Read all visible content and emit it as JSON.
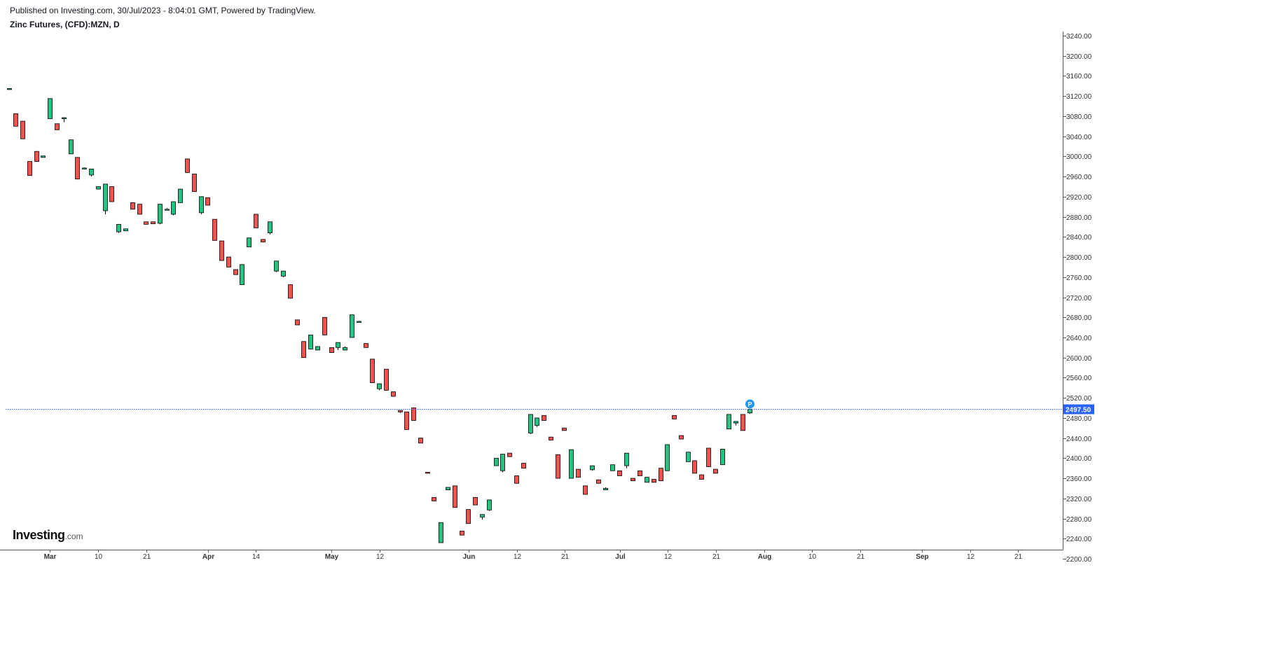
{
  "header": {
    "published": "Published on Investing.com, 30/Jul/2023 - 8:04:01 GMT, Powered by TradingView.",
    "symbol": "Zinc Futures, (CFD):MZN, D"
  },
  "logo": {
    "main": "Investing",
    "suffix": ".com"
  },
  "colors": {
    "up": "#26c281",
    "down": "#ef5350",
    "price_line": "#2962ff",
    "axis": "#555555",
    "marker": "#2196f3"
  },
  "chart_data": {
    "type": "candlestick",
    "title": "Zinc Futures, (CFD):MZN, D",
    "ylim": [
      2195,
      3245
    ],
    "y_ticks": [
      2200,
      2240,
      2280,
      2320,
      2360,
      2400,
      2440,
      2480,
      2520,
      2560,
      2600,
      2640,
      2680,
      2720,
      2760,
      2800,
      2840,
      2880,
      2920,
      2960,
      3000,
      3040,
      3080,
      3120,
      3160,
      3200,
      3240
    ],
    "x_ticks": [
      {
        "label": "Mar",
        "major": true,
        "x_day": 6
      },
      {
        "label": "10",
        "major": false,
        "x_day": 13
      },
      {
        "label": "21",
        "major": false,
        "x_day": 20
      },
      {
        "label": "Apr",
        "major": true,
        "x_day": 29
      },
      {
        "label": "14",
        "major": false,
        "x_day": 36
      },
      {
        "label": "May",
        "major": true,
        "x_day": 47
      },
      {
        "label": "12",
        "major": false,
        "x_day": 54
      },
      {
        "label": "Jun",
        "major": true,
        "x_day": 67
      },
      {
        "label": "12",
        "major": false,
        "x_day": 74
      },
      {
        "label": "21",
        "major": false,
        "x_day": 81
      },
      {
        "label": "Jul",
        "major": true,
        "x_day": 89
      },
      {
        "label": "12",
        "major": false,
        "x_day": 96
      },
      {
        "label": "21",
        "major": false,
        "x_day": 103
      },
      {
        "label": "Aug",
        "major": true,
        "x_day": 110
      },
      {
        "label": "10",
        "major": false,
        "x_day": 117
      },
      {
        "label": "21",
        "major": false,
        "x_day": 124
      },
      {
        "label": "Sep",
        "major": true,
        "x_day": 133
      },
      {
        "label": "12",
        "major": false,
        "x_day": 140
      },
      {
        "label": "21",
        "major": false,
        "x_day": 147
      }
    ],
    "last_price": 2497.5,
    "last_price_label": "2497.50",
    "marker_label": "P",
    "candles": [
      {
        "o": 3135,
        "h": 3135,
        "l": 3135,
        "c": 3135
      },
      {
        "o": 3085,
        "h": 3085,
        "l": 3060,
        "c": 3060
      },
      {
        "o": 3070,
        "h": 3070,
        "l": 3035,
        "c": 3035
      },
      {
        "o": 2990,
        "h": 2990,
        "l": 2962,
        "c": 2962
      },
      {
        "o": 3010,
        "h": 3010,
        "l": 2990,
        "c": 2990
      },
      {
        "o": 2998,
        "h": 3001,
        "l": 2998,
        "c": 3001
      },
      {
        "o": 3075,
        "h": 3115,
        "l": 3075,
        "c": 3115
      },
      {
        "o": 3065,
        "h": 3065,
        "l": 3053,
        "c": 3053
      },
      {
        "o": 3075,
        "h": 3078,
        "l": 3068,
        "c": 3077
      },
      {
        "o": 3005,
        "h": 3033,
        "l": 3005,
        "c": 3033
      },
      {
        "o": 2998,
        "h": 2998,
        "l": 2955,
        "c": 2955
      },
      {
        "o": 2975,
        "h": 2978,
        "l": 2975,
        "c": 2977
      },
      {
        "o": 2963,
        "h": 2975,
        "l": 2960,
        "c": 2975
      },
      {
        "o": 2935,
        "h": 2940,
        "l": 2935,
        "c": 2940
      },
      {
        "o": 2892,
        "h": 2945,
        "l": 2885,
        "c": 2945
      },
      {
        "o": 2940,
        "h": 2940,
        "l": 2910,
        "c": 2910
      },
      {
        "o": 2850,
        "h": 2865,
        "l": 2848,
        "c": 2865
      },
      {
        "o": 2852,
        "h": 2856,
        "l": 2852,
        "c": 2856
      },
      {
        "o": 2908,
        "h": 2908,
        "l": 2895,
        "c": 2895
      },
      {
        "o": 2905,
        "h": 2905,
        "l": 2885,
        "c": 2885
      },
      {
        "o": 2870,
        "h": 2870,
        "l": 2865,
        "c": 2865
      },
      {
        "o": 2870,
        "h": 2870,
        "l": 2866,
        "c": 2866
      },
      {
        "o": 2867,
        "h": 2905,
        "l": 2865,
        "c": 2905
      },
      {
        "o": 2893,
        "h": 2897,
        "l": 2893,
        "c": 2895
      },
      {
        "o": 2885,
        "h": 2910,
        "l": 2883,
        "c": 2910
      },
      {
        "o": 2908,
        "h": 2935,
        "l": 2908,
        "c": 2935
      },
      {
        "o": 2995,
        "h": 2995,
        "l": 2968,
        "c": 2968
      },
      {
        "o": 2965,
        "h": 2965,
        "l": 2930,
        "c": 2930
      },
      {
        "o": 2888,
        "h": 2920,
        "l": 2885,
        "c": 2920
      },
      {
        "o": 2918,
        "h": 2918,
        "l": 2903,
        "c": 2903
      },
      {
        "o": 2875,
        "h": 2875,
        "l": 2833,
        "c": 2833
      },
      {
        "o": 2832,
        "h": 2832,
        "l": 2793,
        "c": 2793
      },
      {
        "o": 2800,
        "h": 2800,
        "l": 2780,
        "c": 2780
      },
      {
        "o": 2775,
        "h": 2775,
        "l": 2765,
        "c": 2765
      },
      {
        "o": 2745,
        "h": 2785,
        "l": 2745,
        "c": 2785
      },
      {
        "o": 2820,
        "h": 2838,
        "l": 2820,
        "c": 2838
      },
      {
        "o": 2885,
        "h": 2885,
        "l": 2858,
        "c": 2858
      },
      {
        "o": 2835,
        "h": 2835,
        "l": 2829,
        "c": 2830
      },
      {
        "o": 2848,
        "h": 2870,
        "l": 2845,
        "c": 2870
      },
      {
        "o": 2772,
        "h": 2792,
        "l": 2770,
        "c": 2792
      },
      {
        "o": 2762,
        "h": 2772,
        "l": 2760,
        "c": 2772
      },
      {
        "o": 2745,
        "h": 2745,
        "l": 2718,
        "c": 2718
      },
      {
        "o": 2675,
        "h": 2675,
        "l": 2665,
        "c": 2665
      },
      {
        "o": 2632,
        "h": 2632,
        "l": 2600,
        "c": 2600
      },
      {
        "o": 2617,
        "h": 2645,
        "l": 2617,
        "c": 2645
      },
      {
        "o": 2615,
        "h": 2622,
        "l": 2615,
        "c": 2622
      },
      {
        "o": 2680,
        "h": 2680,
        "l": 2645,
        "c": 2645
      },
      {
        "o": 2620,
        "h": 2620,
        "l": 2610,
        "c": 2610
      },
      {
        "o": 2620,
        "h": 2630,
        "l": 2615,
        "c": 2630
      },
      {
        "o": 2615,
        "h": 2622,
        "l": 2615,
        "c": 2620
      },
      {
        "o": 2640,
        "h": 2685,
        "l": 2640,
        "c": 2685
      },
      {
        "o": 2672,
        "h": 2673,
        "l": 2671,
        "c": 2672
      },
      {
        "o": 2628,
        "h": 2628,
        "l": 2620,
        "c": 2620
      },
      {
        "o": 2597,
        "h": 2597,
        "l": 2550,
        "c": 2550
      },
      {
        "o": 2538,
        "h": 2548,
        "l": 2535,
        "c": 2548
      },
      {
        "o": 2577,
        "h": 2577,
        "l": 2535,
        "c": 2535
      },
      {
        "o": 2532,
        "h": 2532,
        "l": 2523,
        "c": 2523
      },
      {
        "o": 2495,
        "h": 2495,
        "l": 2490,
        "c": 2492
      },
      {
        "o": 2492,
        "h": 2492,
        "l": 2457,
        "c": 2457
      },
      {
        "o": 2500,
        "h": 2500,
        "l": 2475,
        "c": 2475
      },
      {
        "o": 2440,
        "h": 2440,
        "l": 2430,
        "c": 2430
      },
      {
        "o": 2372,
        "h": 2372,
        "l": 2371,
        "c": 2371
      },
      {
        "o": 2322,
        "h": 2322,
        "l": 2315,
        "c": 2315
      },
      {
        "o": 2232,
        "h": 2272,
        "l": 2232,
        "c": 2272
      },
      {
        "o": 2337,
        "h": 2342,
        "l": 2337,
        "c": 2342
      },
      {
        "o": 2345,
        "h": 2345,
        "l": 2302,
        "c": 2302
      },
      {
        "o": 2255,
        "h": 2255,
        "l": 2247,
        "c": 2247
      },
      {
        "o": 2298,
        "h": 2298,
        "l": 2270,
        "c": 2270
      },
      {
        "o": 2322,
        "h": 2322,
        "l": 2307,
        "c": 2307
      },
      {
        "o": 2283,
        "h": 2288,
        "l": 2278,
        "c": 2288
      },
      {
        "o": 2297,
        "h": 2317,
        "l": 2295,
        "c": 2317
      },
      {
        "o": 2385,
        "h": 2400,
        "l": 2385,
        "c": 2400
      },
      {
        "o": 2375,
        "h": 2408,
        "l": 2372,
        "c": 2408
      },
      {
        "o": 2410,
        "h": 2410,
        "l": 2403,
        "c": 2403
      },
      {
        "o": 2365,
        "h": 2365,
        "l": 2350,
        "c": 2350
      },
      {
        "o": 2390,
        "h": 2390,
        "l": 2380,
        "c": 2380
      },
      {
        "o": 2450,
        "h": 2487,
        "l": 2448,
        "c": 2487
      },
      {
        "o": 2465,
        "h": 2480,
        "l": 2462,
        "c": 2480
      },
      {
        "o": 2485,
        "h": 2485,
        "l": 2475,
        "c": 2475
      },
      {
        "o": 2442,
        "h": 2442,
        "l": 2436,
        "c": 2436
      },
      {
        "o": 2407,
        "h": 2407,
        "l": 2360,
        "c": 2360
      },
      {
        "o": 2460,
        "h": 2460,
        "l": 2455,
        "c": 2455
      },
      {
        "o": 2360,
        "h": 2417,
        "l": 2360,
        "c": 2417
      },
      {
        "o": 2378,
        "h": 2378,
        "l": 2362,
        "c": 2362
      },
      {
        "o": 2345,
        "h": 2345,
        "l": 2328,
        "c": 2328
      },
      {
        "o": 2377,
        "h": 2385,
        "l": 2375,
        "c": 2385
      },
      {
        "o": 2357,
        "h": 2357,
        "l": 2350,
        "c": 2350
      },
      {
        "o": 2337,
        "h": 2342,
        "l": 2337,
        "c": 2340
      },
      {
        "o": 2375,
        "h": 2387,
        "l": 2375,
        "c": 2387
      },
      {
        "o": 2375,
        "h": 2375,
        "l": 2365,
        "c": 2365
      },
      {
        "o": 2385,
        "h": 2410,
        "l": 2380,
        "c": 2410
      },
      {
        "o": 2360,
        "h": 2360,
        "l": 2355,
        "c": 2355
      },
      {
        "o": 2375,
        "h": 2375,
        "l": 2365,
        "c": 2365
      },
      {
        "o": 2352,
        "h": 2362,
        "l": 2352,
        "c": 2362
      },
      {
        "o": 2358,
        "h": 2358,
        "l": 2352,
        "c": 2352
      },
      {
        "o": 2380,
        "h": 2380,
        "l": 2355,
        "c": 2355
      },
      {
        "o": 2375,
        "h": 2427,
        "l": 2375,
        "c": 2427
      },
      {
        "o": 2485,
        "h": 2485,
        "l": 2478,
        "c": 2478
      },
      {
        "o": 2445,
        "h": 2445,
        "l": 2438,
        "c": 2438
      },
      {
        "o": 2393,
        "h": 2412,
        "l": 2393,
        "c": 2412
      },
      {
        "o": 2395,
        "h": 2395,
        "l": 2370,
        "c": 2370
      },
      {
        "o": 2367,
        "h": 2367,
        "l": 2358,
        "c": 2358
      },
      {
        "o": 2420,
        "h": 2420,
        "l": 2383,
        "c": 2383
      },
      {
        "o": 2378,
        "h": 2378,
        "l": 2370,
        "c": 2370
      },
      {
        "o": 2387,
        "h": 2418,
        "l": 2387,
        "c": 2418
      },
      {
        "o": 2458,
        "h": 2487,
        "l": 2458,
        "c": 2487
      },
      {
        "o": 2470,
        "h": 2473,
        "l": 2465,
        "c": 2473
      },
      {
        "o": 2487,
        "h": 2487,
        "l": 2455,
        "c": 2455
      },
      {
        "o": 2490,
        "h": 2498,
        "l": 2488,
        "c": 2497.5
      }
    ]
  }
}
